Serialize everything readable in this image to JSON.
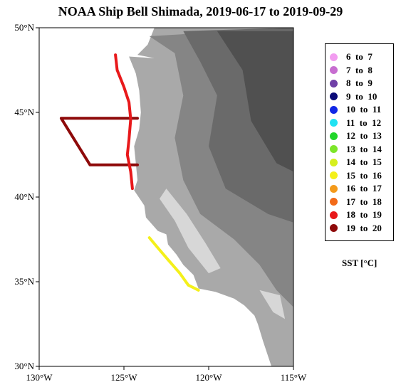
{
  "title": "NOAA Ship Bell Shimada, 2019-06-17 to 2019-09-29",
  "map": {
    "lon_range": [
      -130,
      -115
    ],
    "lat_range": [
      30,
      50
    ],
    "x_ticks": [
      {
        "lon": -130,
        "label": "130°W"
      },
      {
        "lon": -125,
        "label": "125°W"
      },
      {
        "lon": -120,
        "label": "120°W"
      },
      {
        "lon": -115,
        "label": "115°W"
      }
    ],
    "y_ticks": [
      {
        "lat": 50,
        "label": "50°N"
      },
      {
        "lat": 45,
        "label": "45°N"
      },
      {
        "lat": 40,
        "label": "40°N"
      },
      {
        "lat": 35,
        "label": "35°N"
      },
      {
        "lat": 30,
        "label": "30°N"
      }
    ],
    "ocean_color": "#ffffff",
    "land_colors": [
      "#d7d7d7",
      "#a9a9a9",
      "#858585",
      "#6a6a6a",
      "#505050"
    ],
    "features": [
      {
        "name": "track-offshore-line",
        "sst_class": 13,
        "points": [
          [
            -124.2,
            44.65
          ],
          [
            -128.7,
            44.65
          ],
          [
            -127.0,
            41.9
          ],
          [
            -125.0,
            41.9
          ],
          [
            -124.2,
            41.9
          ]
        ]
      },
      {
        "name": "track-shelf-north",
        "sst_class": 12,
        "points": [
          [
            -125.5,
            48.4
          ],
          [
            -125.4,
            47.5
          ],
          [
            -125.0,
            46.5
          ],
          [
            -124.7,
            45.6
          ],
          [
            -124.6,
            44.6
          ],
          [
            -124.7,
            43.4
          ],
          [
            -124.8,
            42.5
          ],
          [
            -124.6,
            41.5
          ],
          [
            -124.5,
            40.5
          ]
        ]
      },
      {
        "name": "track-shelf-central",
        "sst_class": 9,
        "points": [
          [
            -123.5,
            37.6
          ],
          [
            -123.0,
            37.0
          ],
          [
            -122.4,
            36.3
          ],
          [
            -121.7,
            35.5
          ],
          [
            -121.2,
            34.8
          ],
          [
            -120.6,
            34.5
          ]
        ]
      }
    ]
  },
  "legend": {
    "title": "SST [°C]",
    "items": [
      {
        "label": "6  to  7",
        "color": "#f29cf0"
      },
      {
        "label": "7  to  8",
        "color": "#c76dd0"
      },
      {
        "label": "8  to  9",
        "color": "#6f3fa7"
      },
      {
        "label": "9  to  10",
        "color": "#0a0a78"
      },
      {
        "label": "10  to  11",
        "color": "#1027e6"
      },
      {
        "label": "11  to  12",
        "color": "#20e2f2"
      },
      {
        "label": "12  to  13",
        "color": "#21d62a"
      },
      {
        "label": "13  to  14",
        "color": "#7de62a"
      },
      {
        "label": "14  to  15",
        "color": "#d6ef1e"
      },
      {
        "label": "15  to  16",
        "color": "#f4f01a"
      },
      {
        "label": "16  to  17",
        "color": "#f49a1a"
      },
      {
        "label": "17  to  18",
        "color": "#f26a18"
      },
      {
        "label": "18  to  19",
        "color": "#e8191b"
      },
      {
        "label": "19  to  20",
        "color": "#8e0a0a"
      }
    ]
  }
}
